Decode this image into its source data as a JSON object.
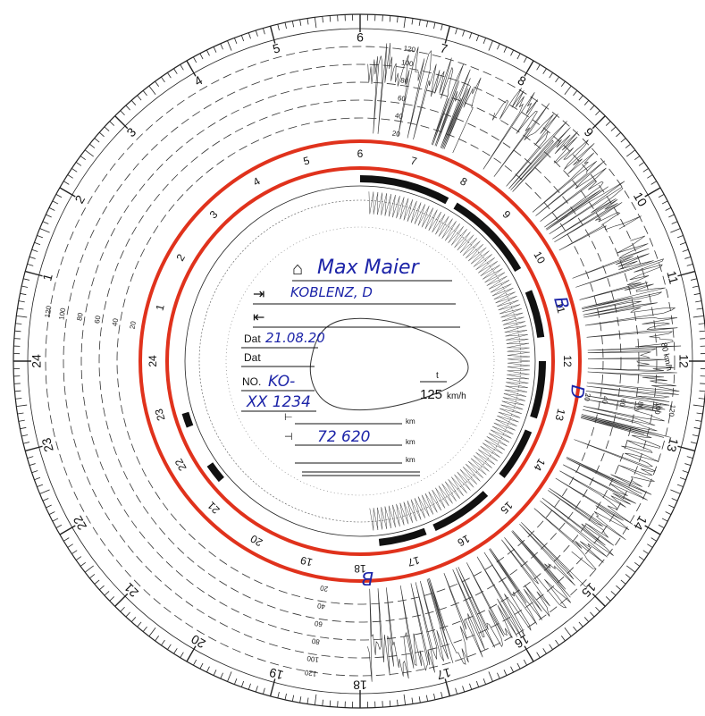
{
  "card": {
    "driver_name": "Max Maier",
    "place": "KOBLENZ, D",
    "date_label": "Dat",
    "date_value": "21.08.20",
    "date2_label": "Dat",
    "number_label": "NO.",
    "plate_line1": "KO-",
    "plate_line2": "XX 1234",
    "odometer_value": "72 620",
    "km_unit_1": "km",
    "km_unit_2": "km",
    "km_unit_3": "km",
    "max_speed": "125",
    "speed_unit": "km/h",
    "t_label": "t",
    "dial_speed_unit": "80 km/h"
  },
  "hour_labels_outer": [
    "6",
    "7",
    "8",
    "9",
    "10",
    "11",
    "12",
    "13",
    "14",
    "15",
    "16",
    "17",
    "18",
    "19",
    "20",
    "21",
    "22",
    "23",
    "24",
    "1",
    "2",
    "3",
    "4",
    "5"
  ],
  "hour_labels_inner": [
    "6",
    "7",
    "8",
    "9",
    "10",
    "11",
    "12",
    "13",
    "14",
    "15",
    "16",
    "17",
    "18",
    "19",
    "20",
    "21",
    "22",
    "23",
    "24",
    "1",
    "2",
    "3",
    "4",
    "5"
  ],
  "speed_scale_labels": [
    "20",
    "40",
    "60",
    "80",
    "100",
    "120"
  ],
  "annotations": {
    "mark_B_right": "B",
    "mark_D_right": "D",
    "mark_B_bottom": "B"
  },
  "colors": {
    "highlight_ring": "#e0321c",
    "ink_handwriting": "#1c24a8",
    "print": "#111111"
  }
}
